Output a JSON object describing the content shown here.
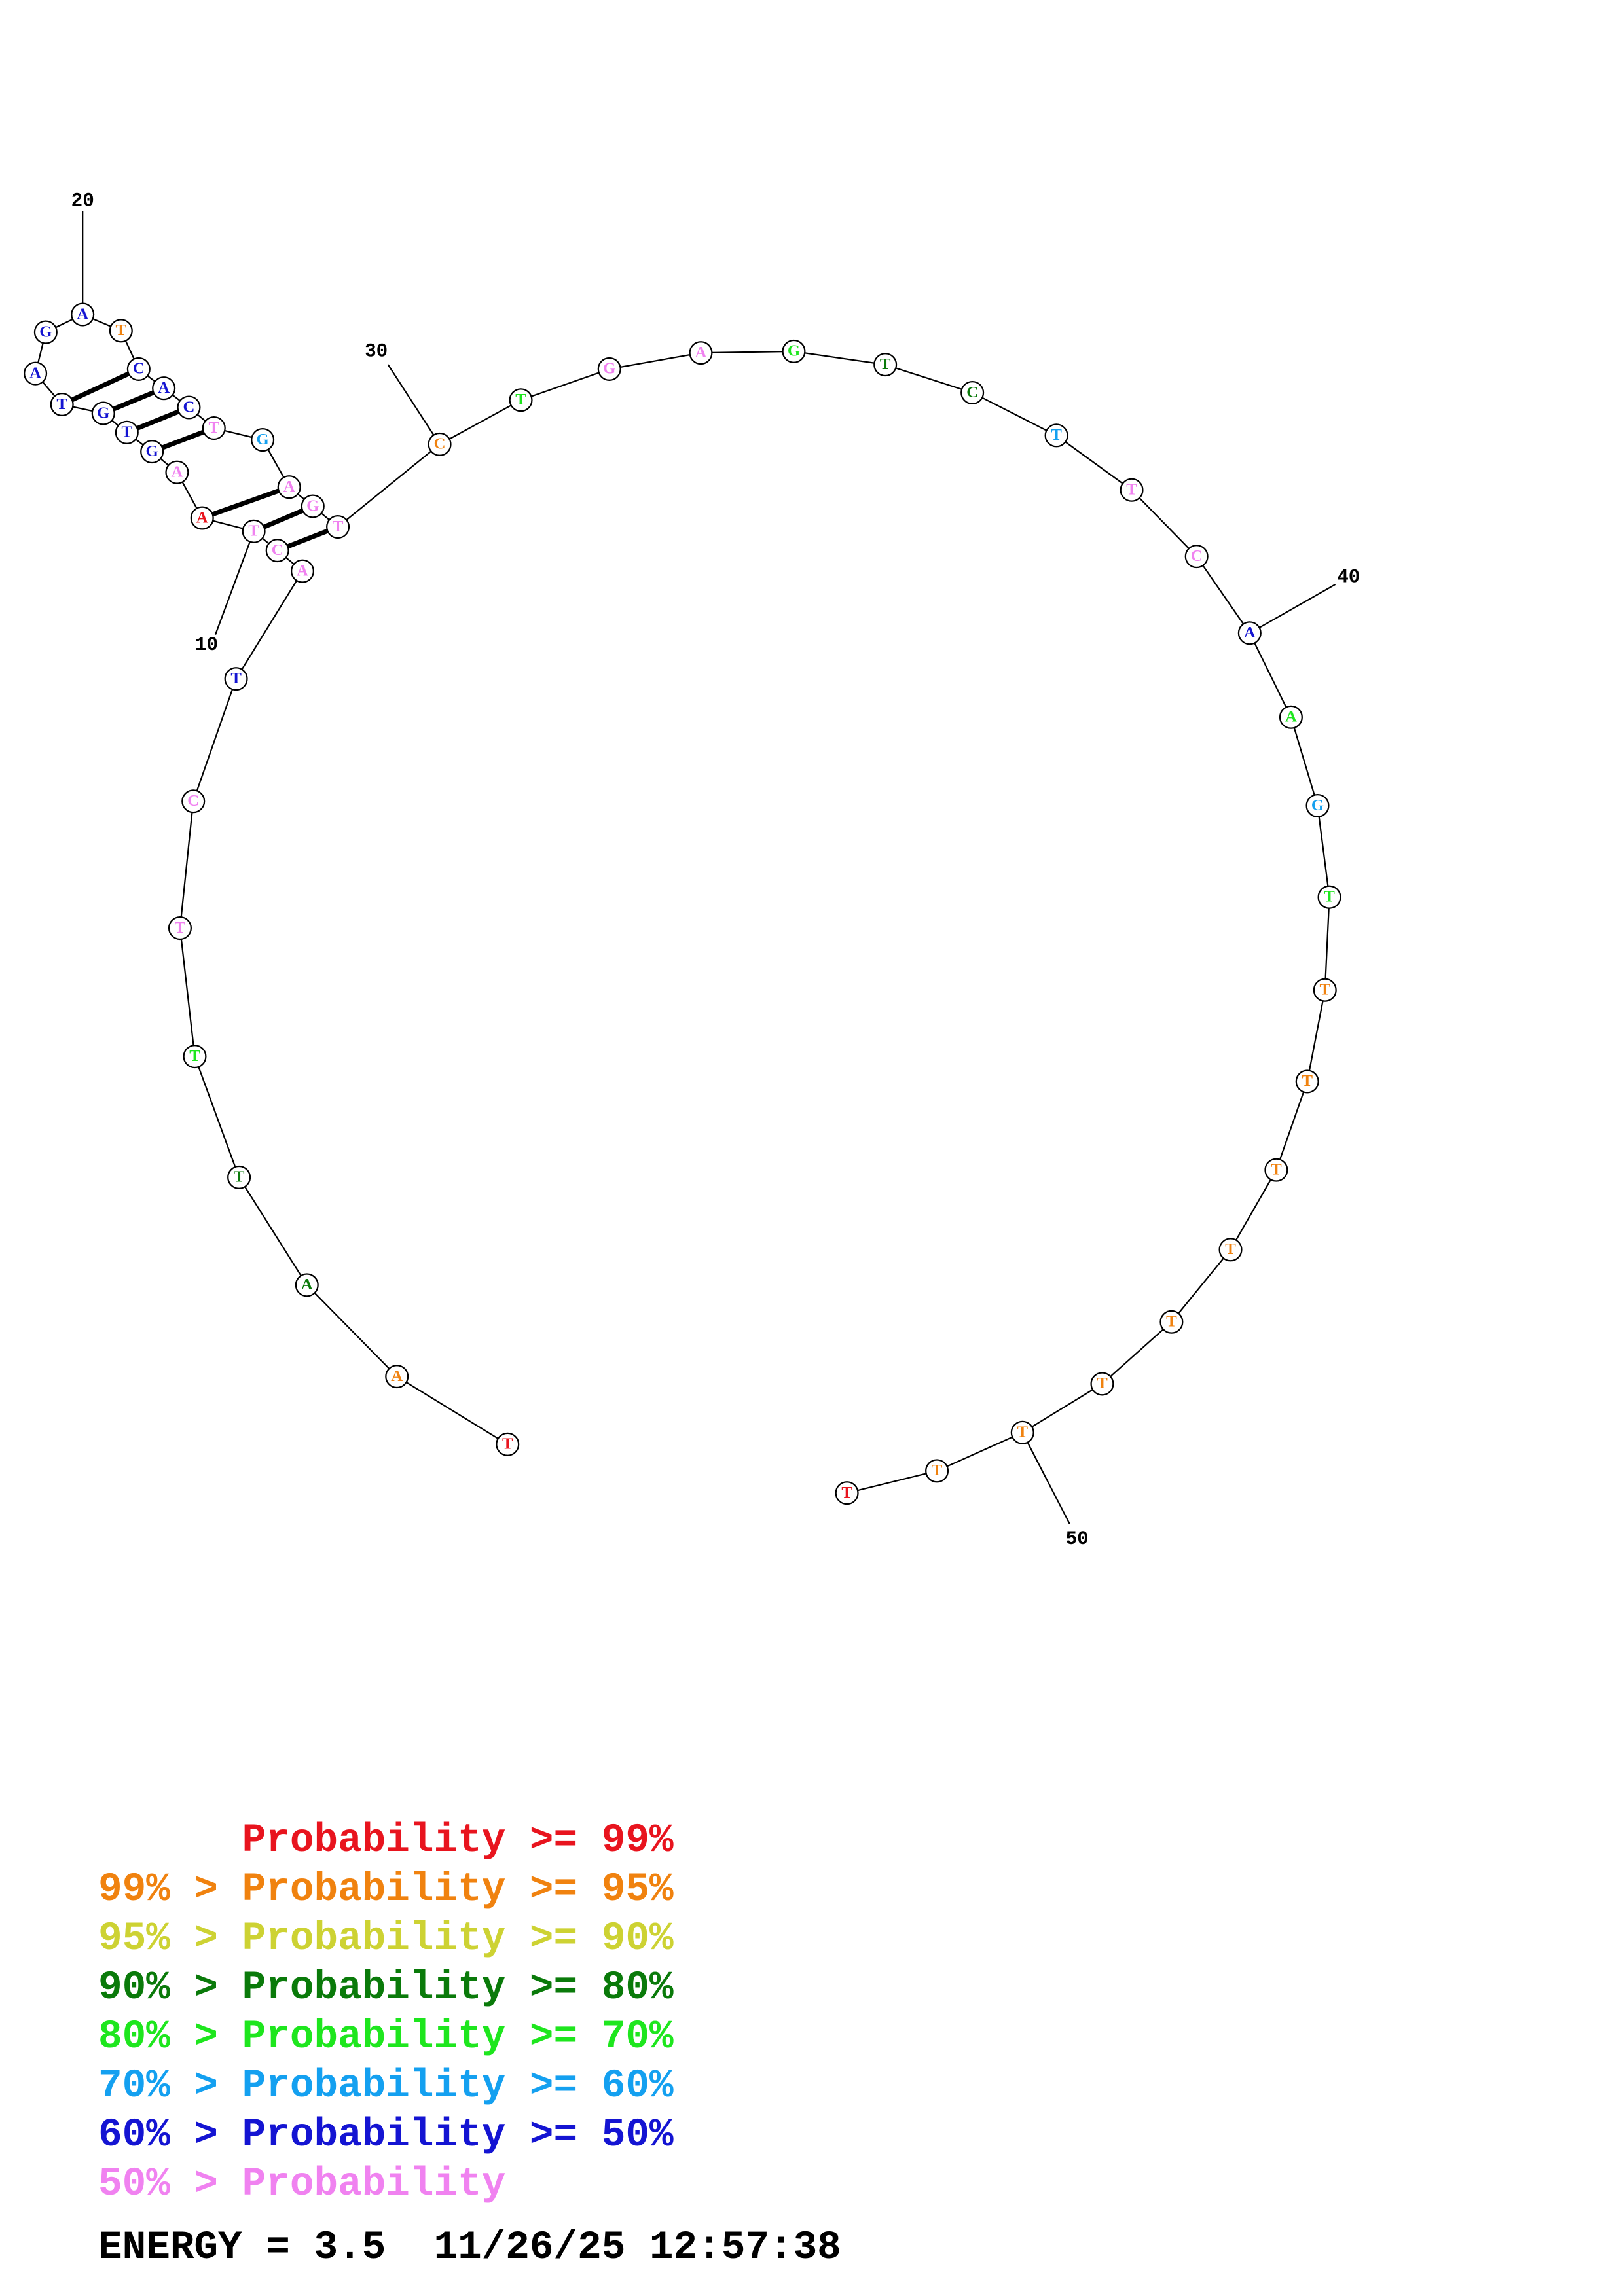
{
  "diagram": {
    "sequence": [
      {
        "n": 1,
        "base": "T",
        "cls": 0
      },
      {
        "n": 2,
        "base": "A",
        "cls": 1
      },
      {
        "n": 3,
        "base": "A",
        "cls": 3
      },
      {
        "n": 4,
        "base": "T",
        "cls": 3
      },
      {
        "n": 5,
        "base": "T",
        "cls": 4
      },
      {
        "n": 6,
        "base": "T",
        "cls": 7
      },
      {
        "n": 7,
        "base": "C",
        "cls": 7
      },
      {
        "n": 8,
        "base": "T",
        "cls": 6
      },
      {
        "n": 9,
        "base": "A",
        "cls": 7
      },
      {
        "n": 10,
        "base": "C",
        "cls": 7
      },
      {
        "n": 11,
        "base": "T",
        "cls": 7
      },
      {
        "n": 12,
        "base": "A",
        "cls": 0
      },
      {
        "n": 13,
        "base": "A",
        "cls": 7
      },
      {
        "n": 14,
        "base": "G",
        "cls": 6
      },
      {
        "n": 15,
        "base": "T",
        "cls": 6
      },
      {
        "n": 16,
        "base": "G",
        "cls": 6
      },
      {
        "n": 17,
        "base": "T",
        "cls": 6
      },
      {
        "n": 18,
        "base": "A",
        "cls": 6
      },
      {
        "n": 19,
        "base": "G",
        "cls": 6
      },
      {
        "n": 20,
        "base": "A",
        "cls": 6
      },
      {
        "n": 21,
        "base": "T",
        "cls": 1
      },
      {
        "n": 22,
        "base": "C",
        "cls": 6
      },
      {
        "n": 23,
        "base": "A",
        "cls": 6
      },
      {
        "n": 24,
        "base": "C",
        "cls": 6
      },
      {
        "n": 25,
        "base": "T",
        "cls": 7
      },
      {
        "n": 26,
        "base": "G",
        "cls": 5
      },
      {
        "n": 27,
        "base": "A",
        "cls": 7
      },
      {
        "n": 28,
        "base": "G",
        "cls": 7
      },
      {
        "n": 29,
        "base": "T",
        "cls": 7
      },
      {
        "n": 30,
        "base": "C",
        "cls": 1
      },
      {
        "n": 31,
        "base": "T",
        "cls": 4
      },
      {
        "n": 32,
        "base": "G",
        "cls": 7
      },
      {
        "n": 33,
        "base": "A",
        "cls": 7
      },
      {
        "n": 34,
        "base": "G",
        "cls": 4
      },
      {
        "n": 35,
        "base": "T",
        "cls": 3
      },
      {
        "n": 36,
        "base": "C",
        "cls": 3
      },
      {
        "n": 37,
        "base": "T",
        "cls": 5
      },
      {
        "n": 38,
        "base": "T",
        "cls": 7
      },
      {
        "n": 39,
        "base": "C",
        "cls": 7
      },
      {
        "n": 40,
        "base": "A",
        "cls": 6
      },
      {
        "n": 41,
        "base": "A",
        "cls": 4
      },
      {
        "n": 42,
        "base": "G",
        "cls": 5
      },
      {
        "n": 43,
        "base": "T",
        "cls": 4
      },
      {
        "n": 44,
        "base": "T",
        "cls": 1
      },
      {
        "n": 45,
        "base": "T",
        "cls": 1
      },
      {
        "n": 46,
        "base": "T",
        "cls": 1
      },
      {
        "n": 47,
        "base": "T",
        "cls": 1
      },
      {
        "n": 48,
        "base": "T",
        "cls": 1
      },
      {
        "n": 49,
        "base": "T",
        "cls": 1
      },
      {
        "n": 50,
        "base": "T",
        "cls": 1
      },
      {
        "n": 51,
        "base": "T",
        "cls": 1
      },
      {
        "n": 52,
        "base": "T",
        "cls": 0
      }
    ],
    "pairs": [
      [
        10,
        29
      ],
      [
        11,
        28
      ],
      [
        12,
        27
      ],
      [
        14,
        25
      ],
      [
        15,
        24
      ],
      [
        16,
        23
      ],
      [
        17,
        22
      ]
    ],
    "position_labels": [
      "10",
      "20",
      "30",
      "40",
      "50"
    ],
    "class_colors": [
      "#e8141e",
      "#f0820f",
      "#cdd233",
      "#0a7a0a",
      "#1ee61e",
      "#14a0f0",
      "#1414d2",
      "#f082f0"
    ]
  },
  "legend": {
    "rows": [
      {
        "prefix": "",
        "label": "Probability >= 99%",
        "color": "#e8141e"
      },
      {
        "prefix": "99% > ",
        "label": "Probability >= 95%",
        "color": "#f0820f"
      },
      {
        "prefix": "95% > ",
        "label": "Probability >= 90%",
        "color": "#cdd233"
      },
      {
        "prefix": "90% > ",
        "label": "Probability >= 80%",
        "color": "#0a7a0a"
      },
      {
        "prefix": "80% > ",
        "label": "Probability >= 70%",
        "color": "#1ee61e"
      },
      {
        "prefix": "70% > ",
        "label": "Probability >= 60%",
        "color": "#14a0f0"
      },
      {
        "prefix": "60% > ",
        "label": "Probability >= 50%",
        "color": "#1414d2"
      },
      {
        "prefix": "50% > ",
        "label": "Probability",
        "color": "#f082f0"
      }
    ]
  },
  "footer": {
    "energy_text": "ENERGY = 3.5  11/26/25 12:57:38"
  }
}
